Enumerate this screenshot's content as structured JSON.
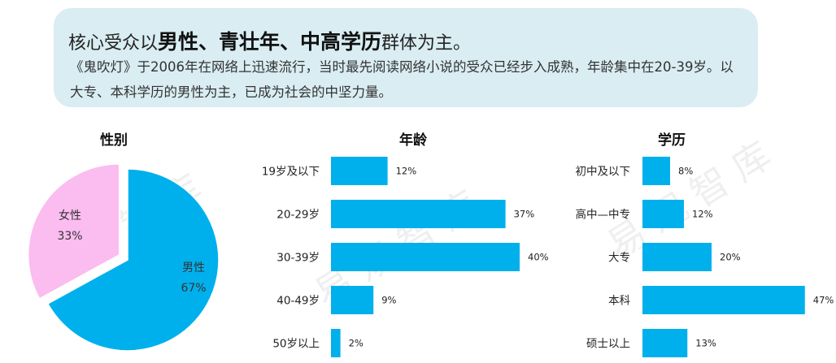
{
  "summary": {
    "headline_pre": "核心受众以",
    "headline_bold": "男性、青壮年、中高学历",
    "headline_post": "群体为主。",
    "description": "《鬼吹灯》于2006年在网络上迅速流行，当时最先阅读网络小说的受众已经步入成熟，年龄集中在20-39岁。以大专、本科学历的男性为主，已成为社会的中坚力量。"
  },
  "watermark": "易观智库",
  "colors": {
    "bar": "#00b0ec",
    "male": "#00b0ec",
    "female": "#fbbcef",
    "box": "#d9edf2"
  },
  "chart_data": [
    {
      "type": "pie",
      "title": "性别",
      "slices": [
        {
          "name": "女性",
          "label": "33%",
          "value": 33,
          "color": "#fbbcef"
        },
        {
          "name": "男性",
          "label": "67%",
          "value": 67,
          "color": "#00b0ec"
        }
      ]
    },
    {
      "type": "bar",
      "orientation": "horizontal",
      "title": "年龄",
      "categories": [
        "19岁及以下",
        "20-29岁",
        "30-39岁",
        "40-49岁",
        "50岁以上"
      ],
      "values": [
        12,
        37,
        40,
        9,
        2
      ],
      "value_labels": [
        "12%",
        "37%",
        "40%",
        "9%",
        "2%"
      ],
      "color": "#00b0ec"
    },
    {
      "type": "bar",
      "orientation": "horizontal",
      "title": "学历",
      "categories": [
        "初中及以下",
        "高中—中专",
        "大专",
        "本科",
        "硕士以上"
      ],
      "values": [
        8,
        12,
        20,
        47,
        13
      ],
      "value_labels": [
        "8%",
        "12%",
        "20%",
        "47%",
        "13%"
      ],
      "color": "#00b0ec"
    }
  ]
}
